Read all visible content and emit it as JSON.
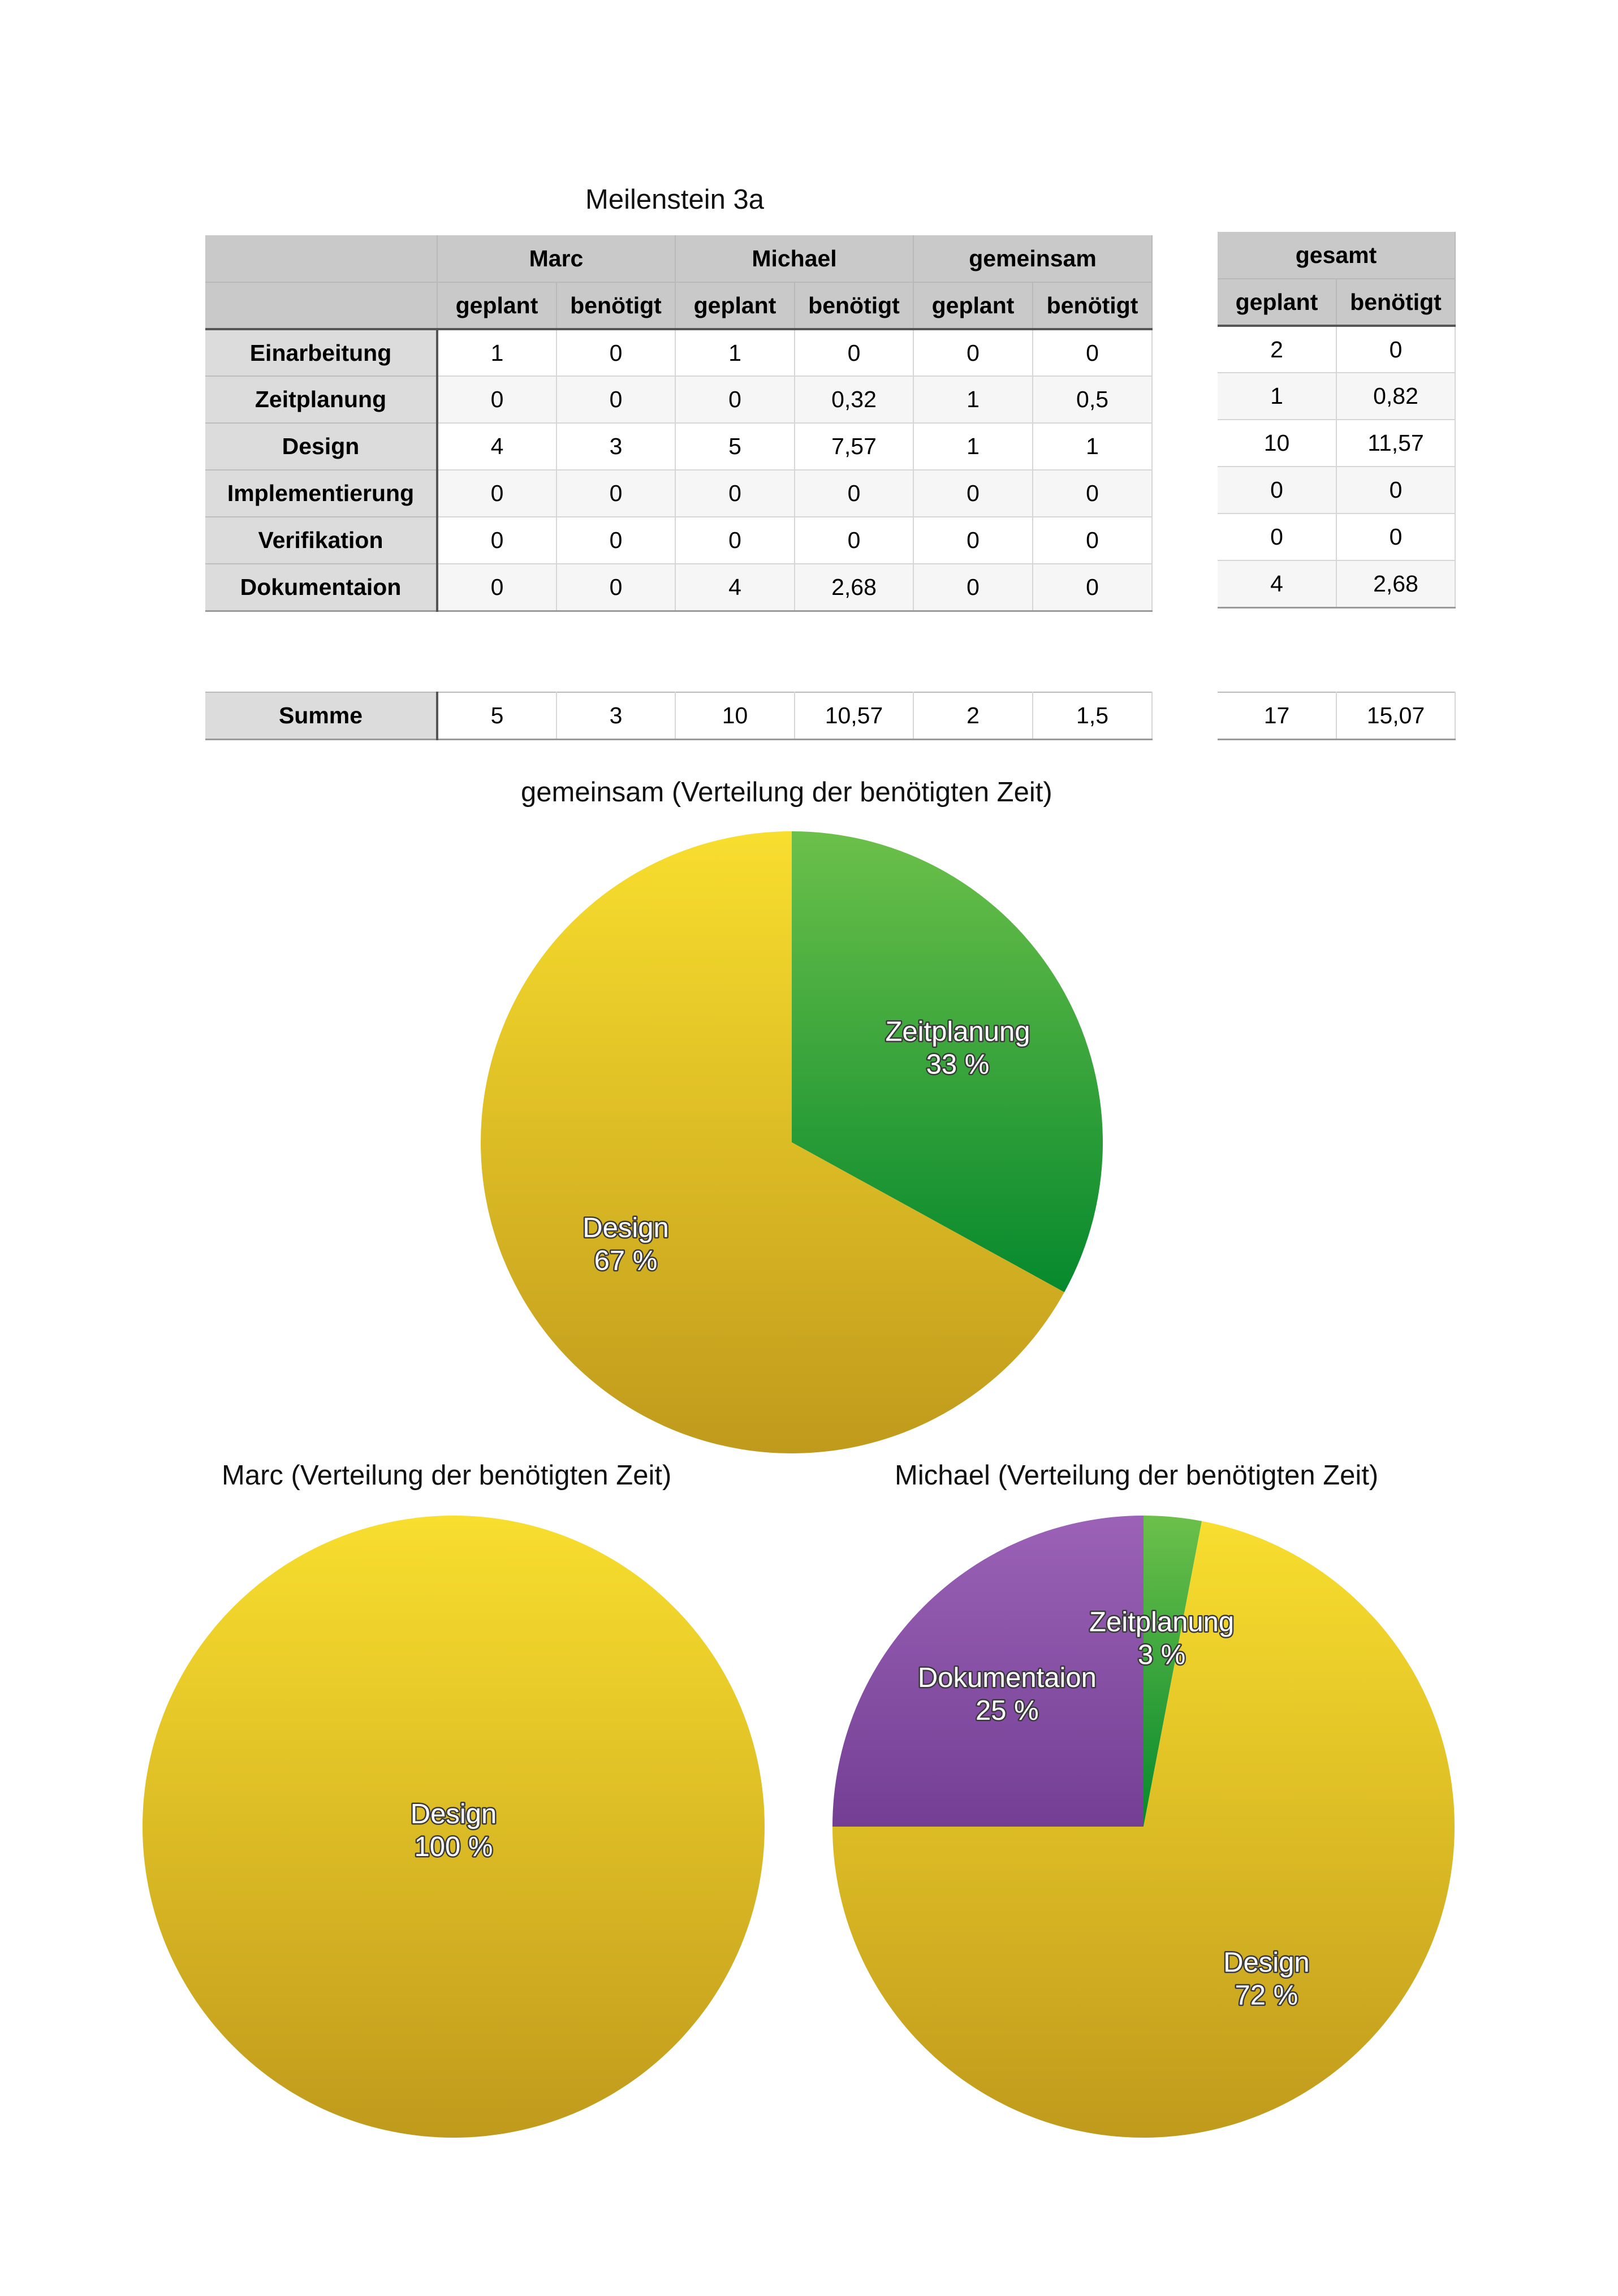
{
  "table_title": "Meilenstein 3a",
  "main_table": {
    "groups": [
      "Marc",
      "Michael",
      "gemeinsam"
    ],
    "subheaders": [
      "geplant",
      "benötigt",
      "geplant",
      "benötigt",
      "geplant",
      "benötigt"
    ],
    "rows": [
      {
        "label": "Einarbeitung",
        "values": [
          "1",
          "0",
          "1",
          "0",
          "0",
          "0"
        ]
      },
      {
        "label": "Zeitplanung",
        "values": [
          "0",
          "0",
          "0",
          "0,32",
          "1",
          "0,5"
        ]
      },
      {
        "label": "Design",
        "values": [
          "4",
          "3",
          "5",
          "7,57",
          "1",
          "1"
        ]
      },
      {
        "label": "Implementierung",
        "values": [
          "0",
          "0",
          "0",
          "0",
          "0",
          "0"
        ]
      },
      {
        "label": "Verifikation",
        "values": [
          "0",
          "0",
          "0",
          "0",
          "0",
          "0"
        ]
      },
      {
        "label": "Dokumentaion",
        "values": [
          "0",
          "0",
          "4",
          "2,68",
          "0",
          "0"
        ]
      }
    ],
    "sum_row": {
      "label": "Summe",
      "values": [
        "5",
        "3",
        "10",
        "10,57",
        "2",
        "1,5"
      ]
    }
  },
  "total_table": {
    "group": "gesamt",
    "subheaders": [
      "geplant",
      "benötigt"
    ],
    "rows": [
      [
        "2",
        "0"
      ],
      [
        "1",
        "0,82"
      ],
      [
        "10",
        "11,57"
      ],
      [
        "0",
        "0"
      ],
      [
        "0",
        "0"
      ],
      [
        "4",
        "2,68"
      ]
    ],
    "sum_row": [
      "17",
      "15,07"
    ]
  },
  "colors": {
    "design_top": "#f8de2e",
    "design_bottom": "#c09a1c",
    "zeit_top": "#6cc04a",
    "zeit_bottom": "#06892d",
    "doku_top": "#9b62b7",
    "doku_bottom": "#733f94"
  },
  "chart_data": [
    {
      "type": "pie",
      "title": "gemeinsam (Verteilung der benötigten Zeit)",
      "slices": [
        {
          "label": "Zeitplanung",
          "value": 33,
          "display": "33 %",
          "color": "zeit"
        },
        {
          "label": "Design",
          "value": 67,
          "display": "67 %",
          "color": "design"
        }
      ]
    },
    {
      "type": "pie",
      "title": "Marc (Verteilung der benötigten Zeit)",
      "slices": [
        {
          "label": "Design",
          "value": 100,
          "display": "100 %",
          "color": "design"
        }
      ]
    },
    {
      "type": "pie",
      "title": "Michael (Verteilung der benötigten Zeit)",
      "slices": [
        {
          "label": "Zeitplanung",
          "value": 3,
          "display": "3 %",
          "color": "zeit"
        },
        {
          "label": "Design",
          "value": 72,
          "display": "72 %",
          "color": "design"
        },
        {
          "label": "Dokumentaion",
          "value": 25,
          "display": "25 %",
          "color": "doku"
        }
      ]
    }
  ]
}
